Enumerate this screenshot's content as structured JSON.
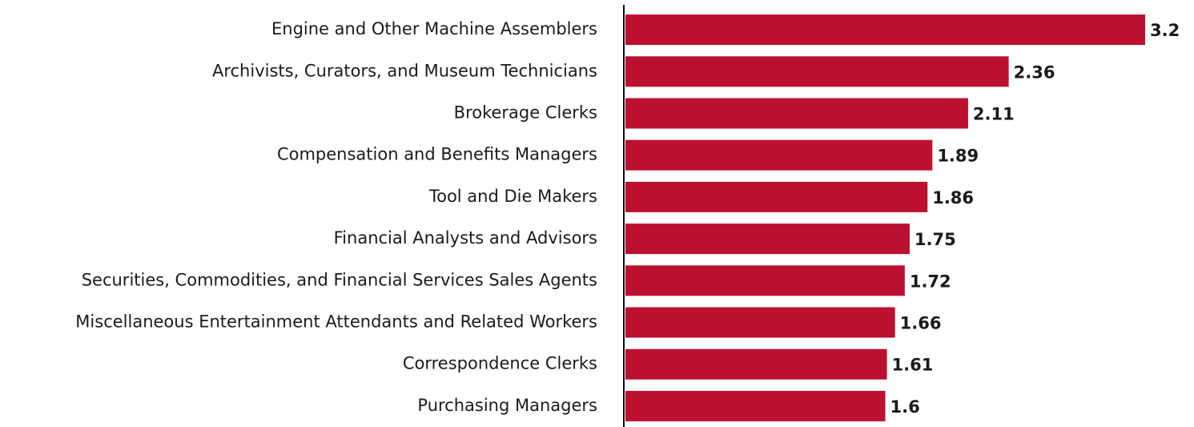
{
  "chart_data": {
    "type": "bar",
    "orientation": "horizontal",
    "categories": [
      "Engine and Other Machine Assemblers",
      "Archivists, Curators, and Museum Technicians",
      "Brokerage Clerks",
      "Compensation and Benefits Managers",
      "Tool and Die Makers",
      "Financial Analysts and Advisors",
      "Securities, Commodities, and Financial Services Sales Agents",
      "Miscellaneous Entertainment Attendants and Related Workers",
      "Correspondence Clerks",
      "Purchasing Managers"
    ],
    "values": [
      3.2,
      2.36,
      2.11,
      1.89,
      1.86,
      1.75,
      1.72,
      1.66,
      1.61,
      1.6
    ],
    "color": "#bb1030",
    "xlim": [
      0,
      3.2
    ]
  }
}
